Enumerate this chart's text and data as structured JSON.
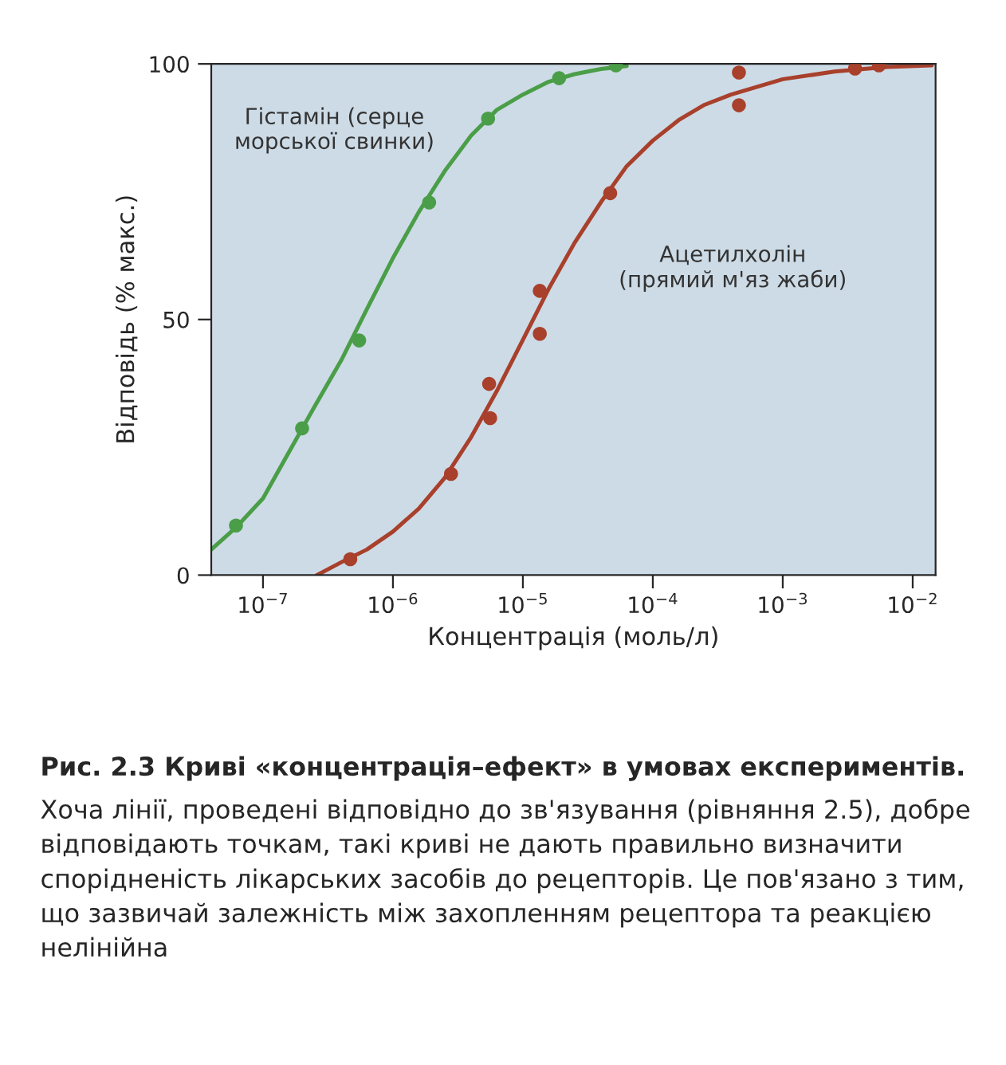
{
  "chart_data": {
    "type": "scatter",
    "title": "Рис. 2.3 Криві «концентрація–ефект» в умовах експериментів.",
    "xlabel": "Концентрація (моль/л)",
    "ylabel": "Відповідь (% макс.)",
    "log": "x",
    "xlim": [
      4e-08,
      0.015
    ],
    "ylim": [
      0,
      100
    ],
    "xticks": [
      {
        "value": 1e-07,
        "label": "10$^{−7}$"
      },
      {
        "value": 1e-06,
        "label": "10$^{−6}$"
      },
      {
        "value": 1e-05,
        "label": "10$^{−5}$"
      },
      {
        "value": 0.0001,
        "label": "10$^{−4}$"
      },
      {
        "value": 0.001,
        "label": "10$^{−3}$"
      },
      {
        "value": 0.01,
        "label": "10$^{−2}$"
      }
    ],
    "yticks": [
      0,
      50,
      100
    ],
    "grid": false,
    "legend": false,
    "series": [
      {
        "type": "line",
        "name": "Гістамін (серце\nморської свинки)",
        "color": "#4a9e48",
        "x": [
          4e-08,
          6.3e-08,
          1e-07,
          1.58e-07,
          2.5e-07,
          4e-07,
          6.3e-07,
          1e-06,
          1.58e-06,
          2.5e-06,
          4e-06,
          6.3e-06,
          1e-05,
          1.58e-05,
          2.5e-05,
          4e-05,
          6.3e-05
        ],
        "values": [
          5,
          9.5,
          15,
          24,
          33,
          42,
          52,
          62,
          71,
          79,
          86,
          91,
          94,
          96.5,
          98,
          99,
          99.6
        ]
      },
      {
        "color": "#4a9e48",
        "marker": "circle",
        "x": [
          6.2e-08,
          2e-07,
          5.5e-07,
          1.9e-06,
          5.4e-06,
          1.9e-05,
          5.2e-05
        ],
        "values": [
          9.7,
          28.7,
          45.9,
          72.9,
          89.3,
          97.2,
          99.7
        ]
      },
      {
        "type": "line",
        "name": "Ацетилхолін\n(прямий м'яз жаби)",
        "color": "#a8402c",
        "x": [
          2.6e-07,
          4e-07,
          6.3e-07,
          1e-06,
          1.58e-06,
          2.5e-06,
          4e-06,
          6.3e-06,
          1e-05,
          1.58e-05,
          2.5e-05,
          4e-05,
          6.3e-05,
          0.0001,
          0.000158,
          0.00025,
          0.0004,
          0.001,
          0.0025,
          0.0063,
          0.014
        ],
        "values": [
          0,
          2.5,
          5,
          8.5,
          13,
          19,
          27,
          36,
          46,
          56,
          65,
          73,
          80,
          85,
          89,
          92,
          94,
          97,
          98.5,
          99.4,
          99.7
        ]
      },
      {
        "color": "#a8402c",
        "marker": "circle",
        "x": [
          4.7e-07,
          2.8e-06,
          5.6e-06,
          5.5e-06,
          1.35e-05,
          1.35e-05,
          4.7e-05,
          0.00046,
          0.00046,
          0.0036,
          0.0055
        ],
        "values": [
          3.1,
          19.8,
          30.7,
          37.4,
          47.2,
          55.6,
          74.7,
          91.9,
          98.3,
          99.1,
          99.7
        ]
      }
    ],
    "annotations": [
      "Хоча лінії, проведені відповідно до зв'язування (рівняння 2.5), добре відповідають точкам, такі криві не дають правильно визначити спорідненість лікарських засобів до рецепторів. Це пов'язано з тим, що зазвичай залежність між захопленням рецептора та реакцією нелінійна"
    ]
  }
}
